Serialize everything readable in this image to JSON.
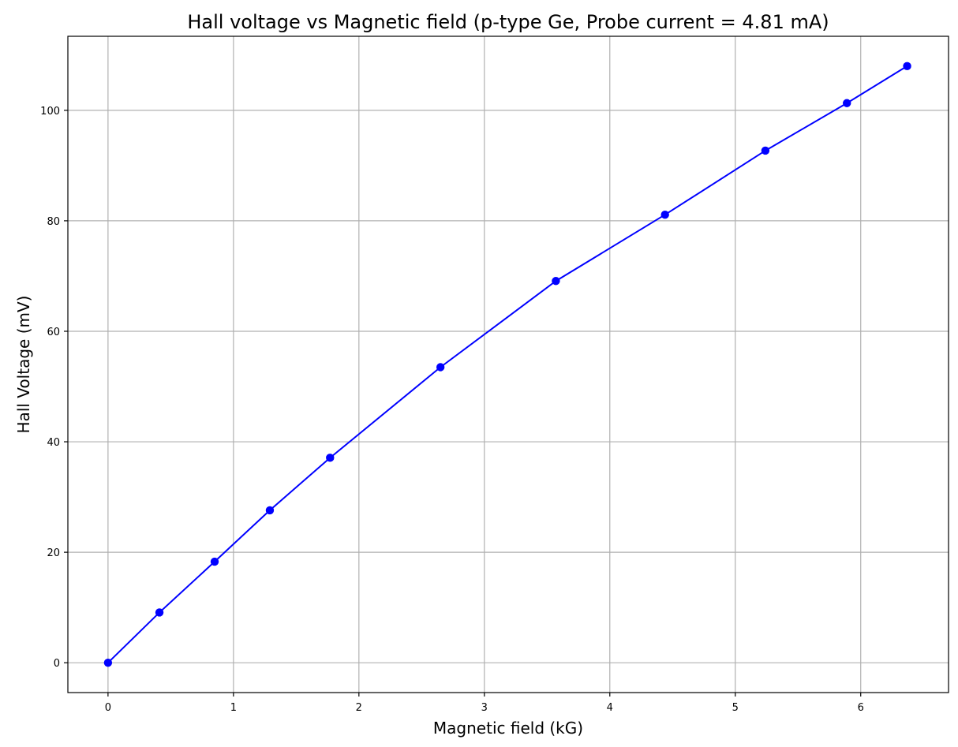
{
  "chart_data": {
    "type": "line",
    "title": "Hall voltage vs Magnetic field (p-type Ge, Probe current = 4.81 mA)",
    "xlabel": "Magnetic field (kG)",
    "ylabel": "Hall Voltage (mV)",
    "xlim": [
      -0.32,
      6.7
    ],
    "ylim": [
      -5.4,
      113.4
    ],
    "xticks": [
      0,
      1,
      2,
      3,
      4,
      5,
      6
    ],
    "yticks": [
      0,
      20,
      40,
      60,
      80,
      100
    ],
    "grid": true,
    "series": [
      {
        "color": "#0000ff",
        "marker": "circle",
        "x": [
          0,
          0.41,
          0.85,
          1.29,
          1.77,
          2.65,
          3.57,
          4.44,
          5.24,
          5.89,
          6.37
        ],
        "y": [
          0,
          9.1,
          18.3,
          27.6,
          37.1,
          53.5,
          69.1,
          81.1,
          92.7,
          101.3,
          108.0
        ]
      }
    ]
  }
}
